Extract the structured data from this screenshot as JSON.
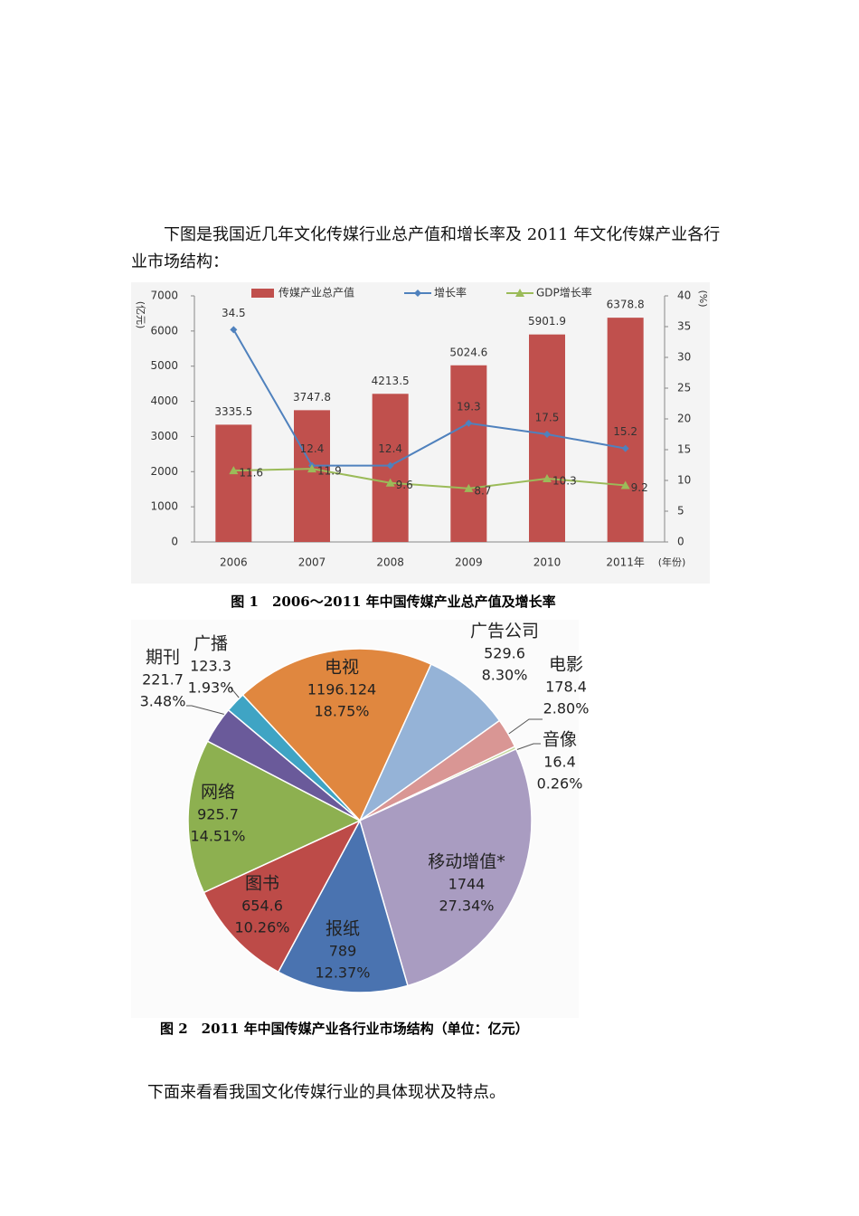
{
  "intro": "下图是我国近几年文化传媒行业总产值和增长率及 2011 年文化传媒产业各行业市场结构：",
  "chart_data": [
    {
      "type": "bar",
      "title": "图 1　2006～2011 年中国传媒产业总产值及增长率",
      "y_label": "(亿元)",
      "y2_label": "(%)",
      "x_label": "(年份)",
      "categories": [
        "2006",
        "2007",
        "2008",
        "2009",
        "2010",
        "2011年"
      ],
      "series": [
        {
          "name": "传媒产业总产值",
          "type": "bar",
          "color": "#c0504d",
          "values": [
            3335.5,
            3747.8,
            4213.5,
            5024.6,
            5901.9,
            6378.8
          ]
        },
        {
          "name": "增长率",
          "type": "line",
          "axis": "y2",
          "marker": "diamond",
          "color": "#4f81bd",
          "values": [
            34.5,
            12.4,
            12.4,
            19.3,
            17.5,
            15.2
          ]
        },
        {
          "name": "GDP增长率",
          "type": "line",
          "axis": "y2",
          "marker": "triangle",
          "color": "#9bbb59",
          "values": [
            11.6,
            11.9,
            9.6,
            8.7,
            10.3,
            9.2
          ]
        }
      ],
      "ylim": [
        0,
        7000
      ],
      "yticks": [
        0,
        1000,
        2000,
        3000,
        4000,
        5000,
        6000,
        7000
      ],
      "y2lim": [
        0,
        40
      ],
      "y2ticks": [
        0,
        5,
        10,
        15,
        20,
        25,
        30,
        35,
        40
      ]
    },
    {
      "type": "pie",
      "title": "图 2　2011 年中国传媒产业各行业市场结构（单位：亿元）",
      "categories": [
        "电视",
        "广告公司",
        "电影",
        "音像",
        "移动增值*",
        "报纸",
        "图书",
        "网络",
        "期刊",
        "广播"
      ],
      "values": [
        1196.124,
        529.6,
        178.4,
        16.4,
        1744,
        789,
        654.6,
        925.7,
        221.7,
        123.3
      ],
      "shares": [
        18.75,
        8.3,
        2.8,
        0.26,
        27.34,
        12.37,
        10.26,
        14.51,
        3.48,
        1.93
      ],
      "share_labels": [
        "18.75%",
        "8.30%",
        "2.80%",
        "0.26%",
        "27.34%",
        "12.37%",
        "10.26%",
        "14.51%",
        "3.48%",
        "1.93%"
      ],
      "colors": [
        "#e0873f",
        "#95b3d7",
        "#d99694",
        "#c3d69b",
        "#a99cc1",
        "#4a73b0",
        "#bd4b48",
        "#8db050",
        "#6a5a9a",
        "#3fa4c4"
      ]
    }
  ],
  "outro": "下面来看看我国文化传媒行业的具体现状及特点。"
}
